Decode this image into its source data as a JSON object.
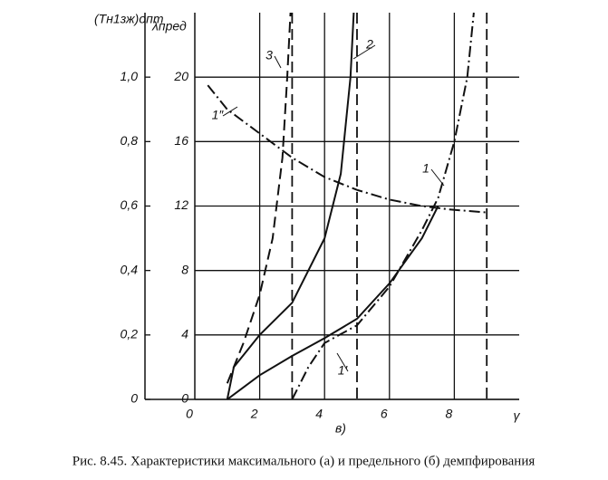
{
  "chart_data": {
    "type": "line",
    "y_label": "λпред",
    "y2_label": "(Tн1зж)опт",
    "x_label": "γ",
    "subcaption": "в)",
    "caption": "Рис. 8.45. Характеристики максимального (а) и предельного (б) демпфирования",
    "xlim": [
      0,
      10
    ],
    "xticks": [
      0,
      2,
      4,
      6,
      8
    ],
    "ylim": [
      0,
      24
    ],
    "yticks": [
      0,
      4,
      8,
      12,
      16,
      20
    ],
    "y2lim": [
      0,
      1.2
    ],
    "y2ticks": [
      0,
      {
        "value": 0.2,
        "label": "0,2"
      },
      {
        "value": 0.4,
        "label": "0,4"
      },
      {
        "value": 0.6,
        "label": "0,6"
      },
      {
        "value": 0.8,
        "label": "0,8"
      },
      {
        "value": 1.0,
        "label": "1,0"
      }
    ],
    "grid": true,
    "asymptotes": [
      3,
      5,
      9
    ],
    "series": [
      {
        "name": "3",
        "color": "#111",
        "dash": "dashed",
        "x": [
          1,
          1.5,
          2,
          2.4,
          2.7,
          2.85,
          2.95
        ],
        "values": [
          1,
          3.5,
          6.5,
          10,
          15,
          20,
          24
        ]
      },
      {
        "name": "2",
        "color": "#111",
        "dash": "solid",
        "x": [
          1,
          1.2,
          2,
          3,
          4,
          4.5,
          4.8,
          4.9
        ],
        "values": [
          0,
          2,
          4,
          6,
          10,
          14,
          20,
          24
        ]
      },
      {
        "name": "1",
        "color": "#111",
        "dash": "dashdot",
        "x": [
          3,
          3.5,
          4,
          5,
          6,
          7,
          7.5,
          8,
          8.4,
          8.6
        ],
        "values": [
          0,
          2,
          3.5,
          4.6,
          7,
          10.5,
          12.5,
          16,
          20,
          24
        ]
      },
      {
        "name": "1′",
        "color": "#111",
        "dash": "solid",
        "x": [
          1,
          2,
          3,
          4,
          5,
          6,
          7,
          7.5
        ],
        "values": [
          0,
          1.5,
          2.7,
          3.8,
          5,
          7.2,
          10,
          12
        ]
      },
      {
        "name": "1″",
        "color": "#111",
        "dash": "dashdot",
        "x": [
          0.4,
          1,
          2,
          3,
          4,
          5,
          6,
          7,
          7.8,
          9
        ],
        "values": [
          19.5,
          18,
          16.5,
          15,
          13.8,
          13,
          12.4,
          12,
          11.8,
          11.6
        ]
      }
    ]
  }
}
